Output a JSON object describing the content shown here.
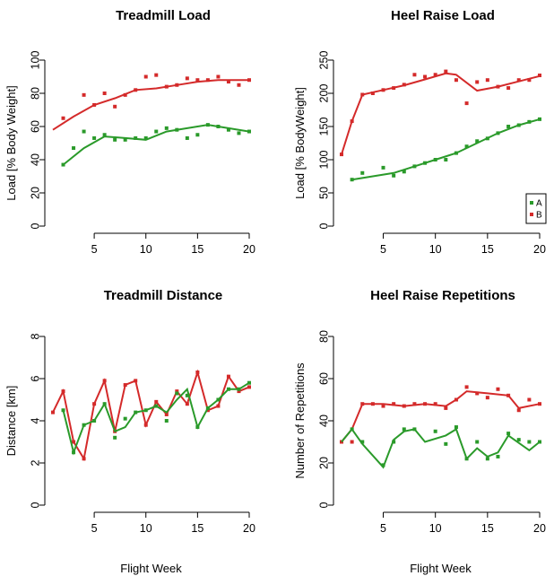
{
  "colors": {
    "A": "#2a9a2a",
    "B": "#d42a2a",
    "axis": "#000000"
  },
  "chart_data": [
    {
      "id": "treadmill-load",
      "type": "line",
      "title": "Treadmill Load",
      "xlabel": "",
      "ylabel": "Load [% Body Weight]",
      "xlim": [
        1,
        20
      ],
      "ylim": [
        0,
        100
      ],
      "xticks": [
        5,
        10,
        15,
        20
      ],
      "yticks": [
        0,
        20,
        40,
        60,
        80,
        100
      ],
      "legend": null,
      "series": [
        {
          "key": "B",
          "points": [
            [
              2,
              65
            ],
            [
              4,
              79
            ],
            [
              5,
              73
            ],
            [
              6,
              80
            ],
            [
              7,
              72
            ],
            [
              8,
              79
            ],
            [
              9,
              82
            ],
            [
              10,
              90
            ],
            [
              11,
              91
            ],
            [
              12,
              84
            ],
            [
              13,
              85
            ],
            [
              14,
              89
            ],
            [
              15,
              88
            ],
            [
              16,
              88
            ],
            [
              17,
              90
            ],
            [
              18,
              87
            ],
            [
              19,
              85
            ],
            [
              20,
              88
            ]
          ],
          "trend": [
            [
              1,
              58
            ],
            [
              3,
              66
            ],
            [
              5,
              73
            ],
            [
              7,
              77
            ],
            [
              9,
              82
            ],
            [
              11,
              83
            ],
            [
              13,
              85
            ],
            [
              15,
              87
            ],
            [
              17,
              88
            ],
            [
              20,
              88
            ]
          ]
        },
        {
          "key": "A",
          "points": [
            [
              2,
              37
            ],
            [
              3,
              47
            ],
            [
              4,
              57
            ],
            [
              5,
              53
            ],
            [
              6,
              55
            ],
            [
              7,
              52
            ],
            [
              8,
              52
            ],
            [
              9,
              53
            ],
            [
              10,
              53
            ],
            [
              11,
              57
            ],
            [
              12,
              59
            ],
            [
              13,
              58
            ],
            [
              14,
              53
            ],
            [
              15,
              55
            ],
            [
              16,
              61
            ],
            [
              17,
              60
            ],
            [
              18,
              58
            ],
            [
              19,
              56
            ],
            [
              20,
              57
            ]
          ],
          "trend": [
            [
              2,
              37
            ],
            [
              4,
              47
            ],
            [
              6,
              54
            ],
            [
              8,
              53
            ],
            [
              10,
              52
            ],
            [
              12,
              57
            ],
            [
              14,
              59
            ],
            [
              16,
              61
            ],
            [
              18,
              59
            ],
            [
              20,
              57
            ]
          ]
        }
      ]
    },
    {
      "id": "heel-raise-load",
      "type": "line",
      "title": "Heel Raise Load",
      "xlabel": "",
      "ylabel": "Load [% BodyWeight]",
      "xlim": [
        1,
        20
      ],
      "ylim": [
        0,
        250
      ],
      "xticks": [
        5,
        10,
        15,
        20
      ],
      "yticks": [
        0,
        50,
        100,
        150,
        200,
        250
      ],
      "legend": {
        "position": "bottom-right",
        "entries": [
          "A",
          "B"
        ]
      },
      "series": [
        {
          "key": "B",
          "points": [
            [
              1,
              108
            ],
            [
              2,
              158
            ],
            [
              3,
              198
            ],
            [
              4,
              200
            ],
            [
              5,
              205
            ],
            [
              6,
              208
            ],
            [
              7,
              213
            ],
            [
              8,
              228
            ],
            [
              9,
              225
            ],
            [
              10,
              228
            ],
            [
              11,
              233
            ],
            [
              12,
              220
            ],
            [
              13,
              185
            ],
            [
              14,
              217
            ],
            [
              15,
              220
            ],
            [
              16,
              210
            ],
            [
              17,
              208
            ],
            [
              18,
              220
            ],
            [
              19,
              220
            ],
            [
              20,
              227
            ]
          ],
          "trend": [
            [
              1,
              108
            ],
            [
              2,
              158
            ],
            [
              3,
              198
            ],
            [
              5,
              205
            ],
            [
              7,
              212
            ],
            [
              9,
              221
            ],
            [
              11,
              230
            ],
            [
              12,
              228
            ],
            [
              14,
              204
            ],
            [
              16,
              210
            ],
            [
              18,
              218
            ],
            [
              20,
              226
            ]
          ]
        },
        {
          "key": "A",
          "points": [
            [
              2,
              70
            ],
            [
              3,
              80
            ],
            [
              5,
              88
            ],
            [
              6,
              76
            ],
            [
              7,
              82
            ],
            [
              8,
              90
            ],
            [
              9,
              95
            ],
            [
              10,
              100
            ],
            [
              11,
              100
            ],
            [
              12,
              110
            ],
            [
              13,
              120
            ],
            [
              14,
              128
            ],
            [
              15,
              132
            ],
            [
              16,
              140
            ],
            [
              17,
              150
            ],
            [
              18,
              152
            ],
            [
              19,
              157
            ],
            [
              20,
              161
            ]
          ],
          "trend": [
            [
              2,
              70
            ],
            [
              4,
              75
            ],
            [
              6,
              80
            ],
            [
              8,
              90
            ],
            [
              10,
              100
            ],
            [
              12,
              110
            ],
            [
              14,
              125
            ],
            [
              16,
              140
            ],
            [
              18,
              152
            ],
            [
              20,
              161
            ]
          ]
        }
      ]
    },
    {
      "id": "treadmill-distance",
      "type": "line",
      "title": "Treadmill Distance",
      "xlabel": "Flight Week",
      "ylabel": "Distance [km]",
      "xlim": [
        1,
        20
      ],
      "ylim": [
        0,
        8
      ],
      "xticks": [
        5,
        10,
        15,
        20
      ],
      "yticks": [
        0,
        2,
        4,
        6,
        8
      ],
      "legend": null,
      "series": [
        {
          "key": "B",
          "points": [
            [
              1,
              4.4
            ],
            [
              2,
              5.4
            ],
            [
              3,
              3.0
            ],
            [
              4,
              2.2
            ],
            [
              5,
              4.8
            ],
            [
              6,
              5.9
            ],
            [
              7,
              3.5
            ],
            [
              8,
              5.7
            ],
            [
              9,
              5.9
            ],
            [
              10,
              3.8
            ],
            [
              11,
              4.9
            ],
            [
              12,
              4.3
            ],
            [
              13,
              5.4
            ],
            [
              14,
              4.8
            ],
            [
              15,
              6.3
            ],
            [
              16,
              4.5
            ],
            [
              17,
              4.7
            ],
            [
              18,
              6.1
            ],
            [
              19,
              5.4
            ],
            [
              20,
              5.6
            ]
          ],
          "trend": [
            [
              1,
              4.4
            ],
            [
              2,
              5.4
            ],
            [
              3,
              3.0
            ],
            [
              4,
              2.2
            ],
            [
              5,
              4.8
            ],
            [
              6,
              5.9
            ],
            [
              7,
              3.5
            ],
            [
              8,
              5.7
            ],
            [
              9,
              5.9
            ],
            [
              10,
              3.8
            ],
            [
              11,
              4.9
            ],
            [
              12,
              4.3
            ],
            [
              13,
              5.4
            ],
            [
              14,
              4.8
            ],
            [
              15,
              6.3
            ],
            [
              16,
              4.5
            ],
            [
              17,
              4.7
            ],
            [
              18,
              6.1
            ],
            [
              19,
              5.4
            ],
            [
              20,
              5.6
            ]
          ]
        },
        {
          "key": "A",
          "points": [
            [
              2,
              4.5
            ],
            [
              3,
              2.5
            ],
            [
              4,
              3.8
            ],
            [
              5,
              4.0
            ],
            [
              6,
              4.8
            ],
            [
              7,
              3.2
            ],
            [
              8,
              4.1
            ],
            [
              9,
              4.4
            ],
            [
              10,
              4.5
            ],
            [
              11,
              4.7
            ],
            [
              12,
              4.0
            ],
            [
              13,
              5.3
            ],
            [
              14,
              5.2
            ],
            [
              15,
              3.7
            ],
            [
              16,
              4.6
            ],
            [
              17,
              5.0
            ],
            [
              18,
              5.5
            ],
            [
              19,
              5.5
            ],
            [
              20,
              5.8
            ]
          ],
          "trend": [
            [
              2,
              4.5
            ],
            [
              3,
              2.5
            ],
            [
              4,
              3.8
            ],
            [
              5,
              4.0
            ],
            [
              6,
              4.8
            ],
            [
              7,
              3.5
            ],
            [
              8,
              3.7
            ],
            [
              9,
              4.4
            ],
            [
              10,
              4.5
            ],
            [
              11,
              4.7
            ],
            [
              12,
              4.4
            ],
            [
              13,
              5.0
            ],
            [
              14,
              5.5
            ],
            [
              15,
              3.7
            ],
            [
              16,
              4.6
            ],
            [
              17,
              5.0
            ],
            [
              18,
              5.5
            ],
            [
              19,
              5.5
            ],
            [
              20,
              5.8
            ]
          ]
        }
      ]
    },
    {
      "id": "heel-raise-repetitions",
      "type": "line",
      "title": "Heel Raise Repetitions",
      "xlabel": "Flight Week",
      "ylabel": "Number of Repetitions",
      "xlim": [
        1,
        20
      ],
      "ylim": [
        0,
        80
      ],
      "xticks": [
        5,
        10,
        15,
        20
      ],
      "yticks": [
        0,
        20,
        40,
        60,
        80
      ],
      "legend": null,
      "series": [
        {
          "key": "B",
          "points": [
            [
              1,
              30
            ],
            [
              2,
              30
            ],
            [
              3,
              48
            ],
            [
              4,
              48
            ],
            [
              5,
              47
            ],
            [
              6,
              48
            ],
            [
              7,
              47
            ],
            [
              8,
              48
            ],
            [
              9,
              48
            ],
            [
              10,
              48
            ],
            [
              11,
              46
            ],
            [
              12,
              50
            ],
            [
              13,
              56
            ],
            [
              14,
              53
            ],
            [
              15,
              51
            ],
            [
              16,
              55
            ],
            [
              17,
              52
            ],
            [
              18,
              45
            ],
            [
              19,
              50
            ],
            [
              20,
              48
            ]
          ],
          "trend": [
            [
              1,
              30
            ],
            [
              2,
              36
            ],
            [
              3,
              48
            ],
            [
              5,
              48
            ],
            [
              7,
              47
            ],
            [
              9,
              48
            ],
            [
              11,
              47
            ],
            [
              12,
              50
            ],
            [
              13,
              54
            ],
            [
              15,
              53
            ],
            [
              17,
              52
            ],
            [
              18,
              46
            ],
            [
              20,
              48
            ]
          ]
        },
        {
          "key": "A",
          "points": [
            [
              2,
              36
            ],
            [
              3,
              30
            ],
            [
              5,
              19
            ],
            [
              6,
              30
            ],
            [
              7,
              36
            ],
            [
              8,
              36
            ],
            [
              10,
              35
            ],
            [
              11,
              29
            ],
            [
              12,
              37
            ],
            [
              13,
              22
            ],
            [
              14,
              30
            ],
            [
              15,
              22
            ],
            [
              16,
              23
            ],
            [
              17,
              34
            ],
            [
              18,
              31
            ],
            [
              19,
              30
            ],
            [
              20,
              30
            ]
          ],
          "trend": [
            [
              1,
              30
            ],
            [
              2,
              36
            ],
            [
              3,
              29
            ],
            [
              5,
              18
            ],
            [
              6,
              31
            ],
            [
              7,
              35
            ],
            [
              8,
              36
            ],
            [
              9,
              30
            ],
            [
              11,
              33
            ],
            [
              12,
              36
            ],
            [
              13,
              22
            ],
            [
              14,
              27
            ],
            [
              15,
              23
            ],
            [
              16,
              25
            ],
            [
              17,
              33
            ],
            [
              19,
              26
            ],
            [
              20,
              30
            ]
          ]
        }
      ]
    }
  ]
}
